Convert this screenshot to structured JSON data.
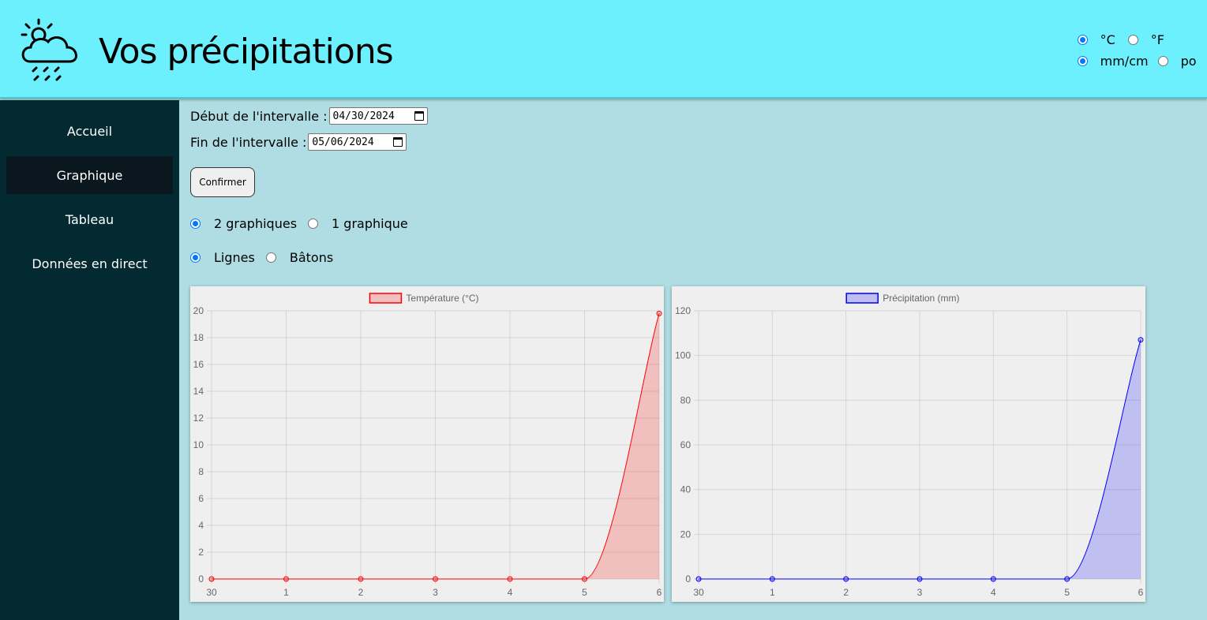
{
  "header": {
    "title": "Vos précipitations",
    "logo_icon": "cloud-sun-rain-icon",
    "temp_units": [
      {
        "label": "°C",
        "checked": true
      },
      {
        "label": "°F",
        "checked": false
      }
    ],
    "precip_units": [
      {
        "label": "mm/cm",
        "checked": true
      },
      {
        "label": "po",
        "checked": false
      }
    ]
  },
  "sidebar": {
    "items": [
      {
        "label": "Accueil",
        "active": false
      },
      {
        "label": "Graphique",
        "active": true
      },
      {
        "label": "Tableau",
        "active": false
      },
      {
        "label": "Données en direct",
        "active": false
      }
    ]
  },
  "form": {
    "start_label": "Début de l'intervalle :",
    "start_value": "04/30/2024",
    "end_label": "Fin de l'intervalle :",
    "end_value": "05/06/2024",
    "confirm_label": "Confirmer"
  },
  "options": {
    "layout": [
      {
        "label": "2 graphiques",
        "checked": true
      },
      {
        "label": "1 graphique",
        "checked": false
      }
    ],
    "style": [
      {
        "label": "Lignes",
        "checked": true
      },
      {
        "label": "Bâtons",
        "checked": false
      }
    ]
  },
  "colors": {
    "header_bg": "#6cf0fd",
    "sidebar_bg": "#032a31",
    "main_bg": "#b0dde3",
    "temp_line": "#ff0000",
    "precip_line": "#0000ff"
  },
  "chart_data": [
    {
      "type": "area",
      "categories": [
        "30",
        "1",
        "2",
        "3",
        "4",
        "5",
        "6"
      ],
      "series": [
        {
          "name": "Température (°C)",
          "values": [
            0,
            0,
            0,
            0,
            0,
            0,
            19.8
          ]
        }
      ],
      "ylim": [
        0,
        20
      ],
      "yticks": [
        0,
        2,
        4,
        6,
        8,
        10,
        12,
        14,
        16,
        18,
        20
      ],
      "legend": "top-center",
      "grid": true,
      "color": "#ff0000"
    },
    {
      "type": "area",
      "categories": [
        "30",
        "1",
        "2",
        "3",
        "4",
        "5",
        "6"
      ],
      "series": [
        {
          "name": "Précipitation (mm)",
          "values": [
            0,
            0,
            0,
            0,
            0,
            0,
            107
          ]
        }
      ],
      "ylim": [
        0,
        120
      ],
      "yticks": [
        0,
        20,
        40,
        60,
        80,
        100,
        120
      ],
      "legend": "top-center",
      "grid": true,
      "color": "#0000ff"
    }
  ]
}
